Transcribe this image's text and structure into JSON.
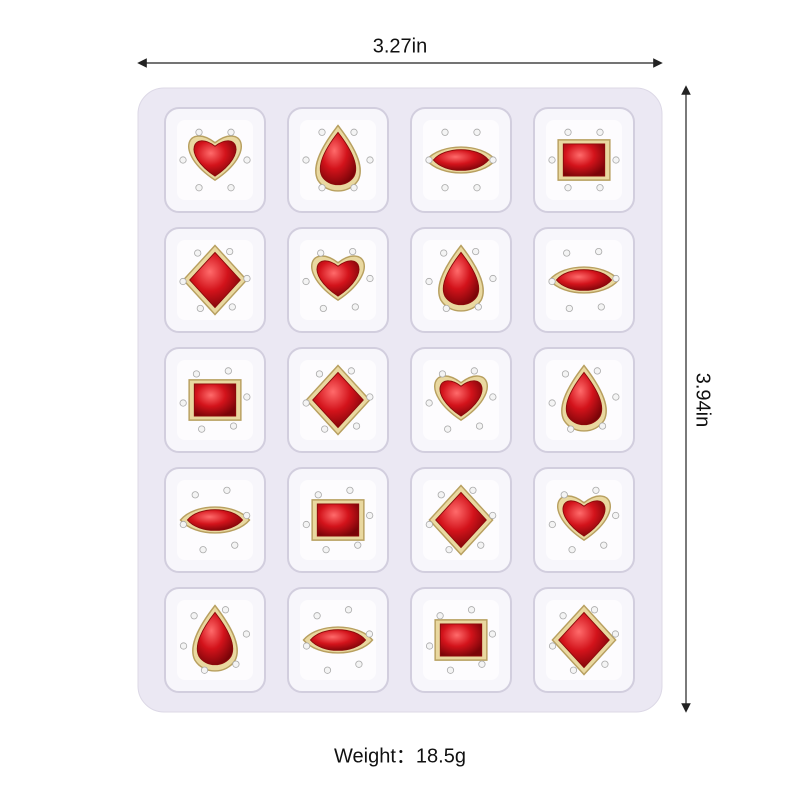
{
  "dimensions": {
    "width": "3.27in",
    "height": "3.94in"
  },
  "weight": "Weight：18.5g"
}
